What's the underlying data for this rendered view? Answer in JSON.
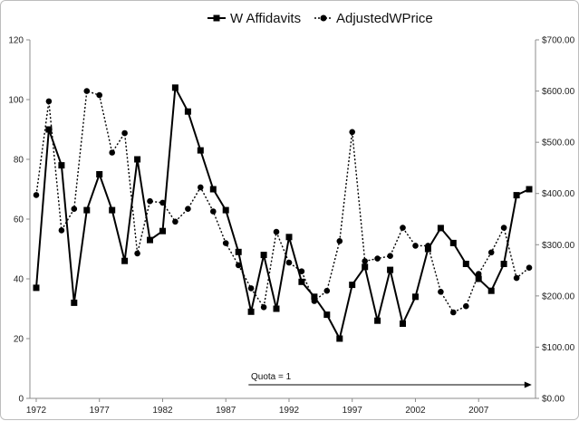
{
  "chart_data": {
    "type": "line",
    "x": [
      1972,
      1973,
      1974,
      1975,
      1976,
      1977,
      1978,
      1979,
      1980,
      1981,
      1982,
      1983,
      1984,
      1985,
      1986,
      1987,
      1988,
      1989,
      1990,
      1991,
      1992,
      1993,
      1994,
      1995,
      1996,
      1997,
      1998,
      1999,
      2000,
      2001,
      2002,
      2003,
      2004,
      2005,
      2006,
      2007,
      2008,
      2009,
      2010,
      2011
    ],
    "x_ticks": [
      "1972",
      "1977",
      "1982",
      "1987",
      "1992",
      "1997",
      "2002",
      "2007"
    ],
    "x_tick_values": [
      1972,
      1977,
      1982,
      1987,
      1992,
      1997,
      2002,
      2007
    ],
    "xlim": [
      1971.5,
      2011.5
    ],
    "left_axis": {
      "ylim": [
        0,
        120
      ],
      "ticks": [
        "0",
        "20",
        "40",
        "60",
        "80",
        "100",
        "120"
      ],
      "tick_values": [
        0,
        20,
        40,
        60,
        80,
        100,
        120
      ]
    },
    "right_axis": {
      "ylim": [
        0,
        700
      ],
      "ticks": [
        "$0.00",
        "$100.00",
        "$200.00",
        "$300.00",
        "$400.00",
        "$500.00",
        "$600.00",
        "$700.00"
      ],
      "tick_values": [
        0,
        100,
        200,
        300,
        400,
        500,
        600,
        700
      ]
    },
    "grid": false,
    "legend_position": "top-right",
    "series": [
      {
        "name": "W Affidavits",
        "axis": "left",
        "style": "solid",
        "marker": "square",
        "color": "#000000",
        "values": [
          37,
          90,
          78,
          32,
          63,
          75,
          63,
          46,
          80,
          53,
          56,
          104,
          96,
          83,
          70,
          63,
          49,
          29,
          48,
          30,
          54,
          39,
          34,
          28,
          20,
          38,
          44,
          26,
          43,
          25,
          34,
          50,
          57,
          52,
          45,
          40,
          36,
          45,
          68,
          70
        ]
      },
      {
        "name": "AdjustedWPrice",
        "axis": "right",
        "style": "dotted",
        "marker": "circle",
        "color": "#000000",
        "values": [
          397,
          580,
          328,
          370,
          600,
          592,
          480,
          518,
          283,
          385,
          382,
          345,
          370,
          412,
          365,
          303,
          260,
          215,
          178,
          325,
          265,
          248,
          190,
          210,
          307,
          520,
          268,
          273,
          278,
          333,
          298,
          298,
          208,
          168,
          180,
          243,
          285,
          333,
          235,
          255
        ]
      }
    ],
    "annotation": {
      "text": "Quota = 1",
      "x_start": 1988.8,
      "x_end": 2011.2
    }
  }
}
